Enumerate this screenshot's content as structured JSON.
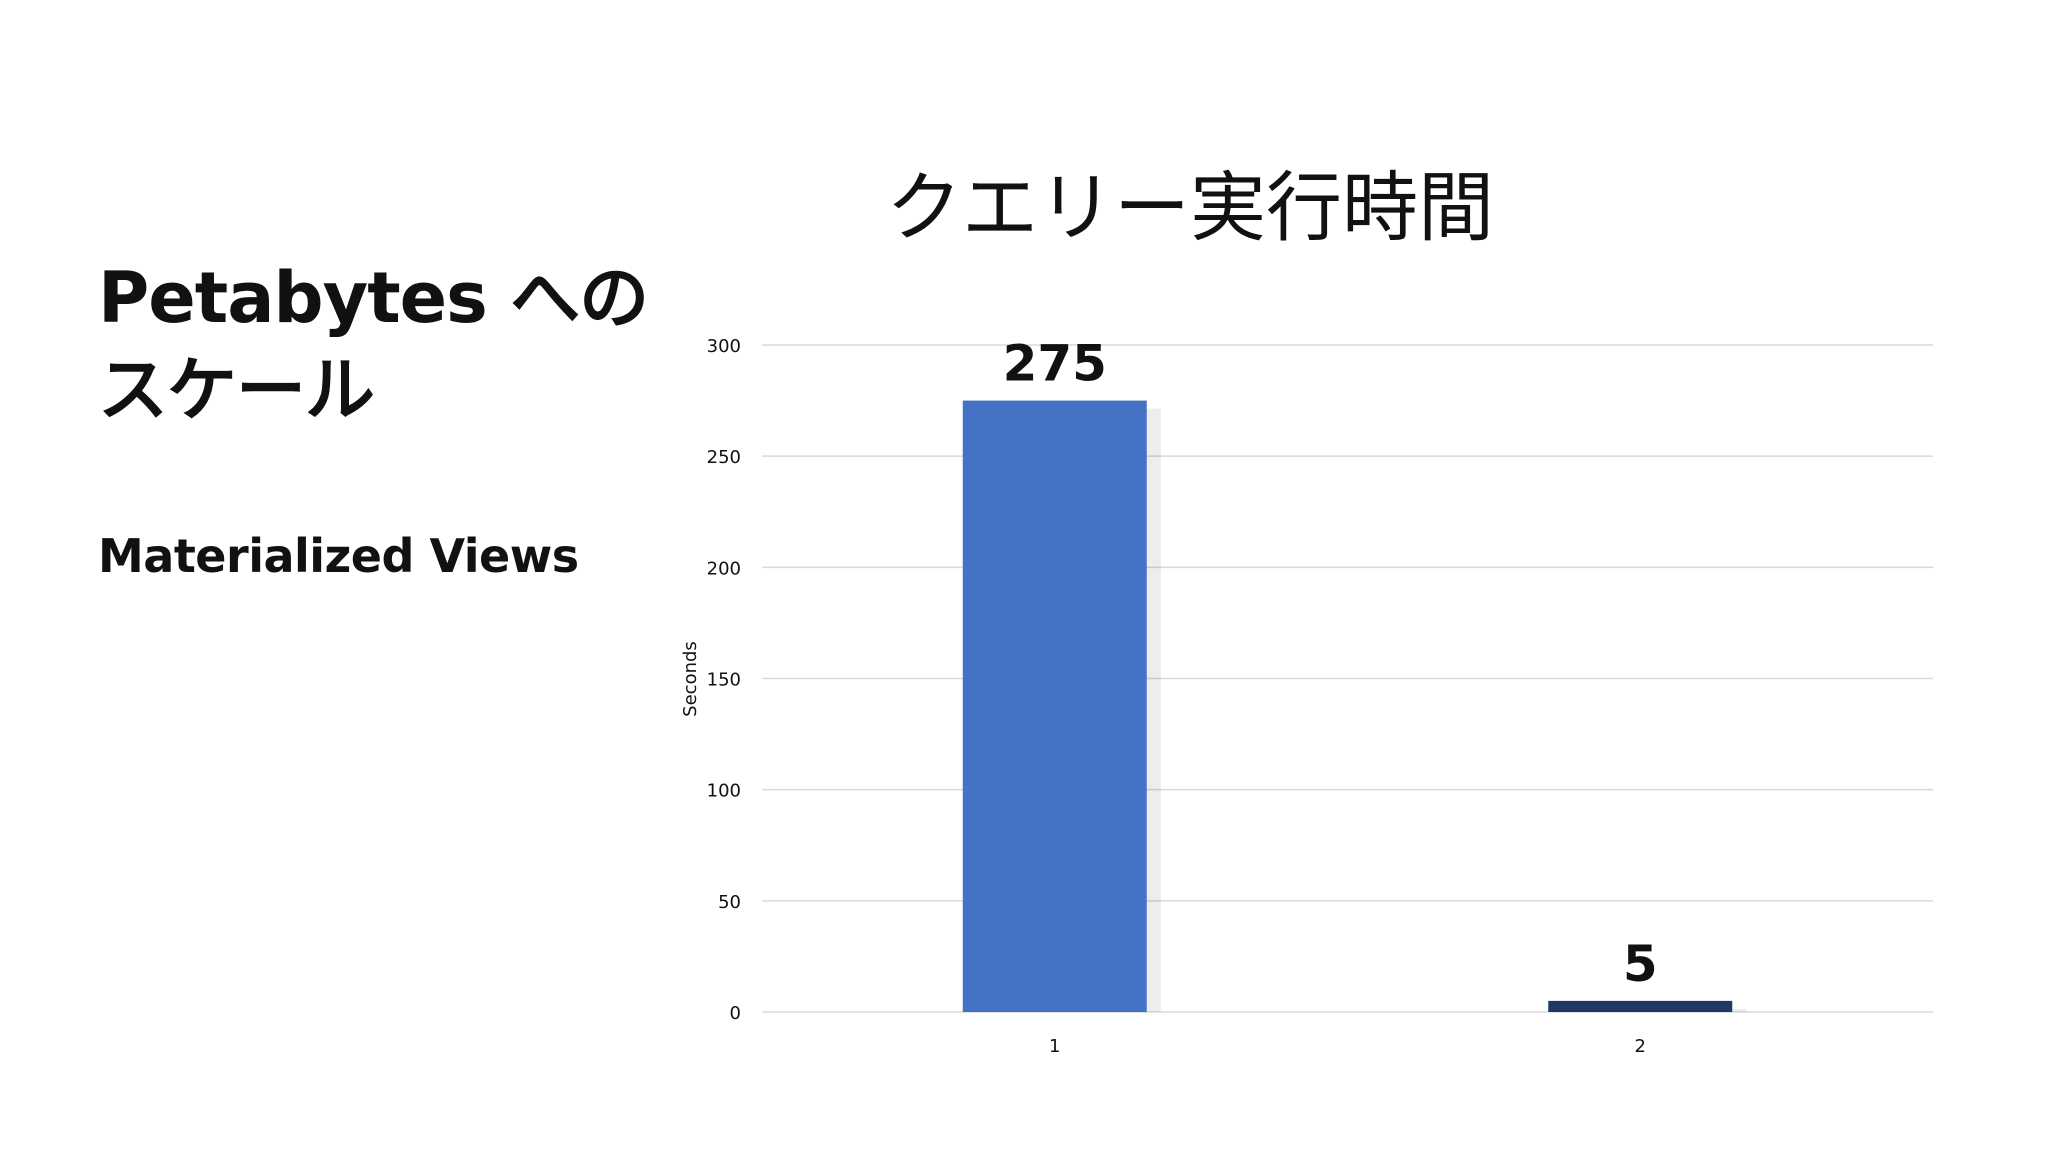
{
  "slide": {
    "title_line1": "Petabytes への",
    "title_line2": "スケール",
    "subtitle": "Materialized Views"
  },
  "colors": {
    "bar_1": "#4472c4",
    "bar_2": "#203864",
    "grid": "#d9d9d9",
    "text": "#111111"
  },
  "chart_data": {
    "type": "bar",
    "title": "クエリー実行時間",
    "xlabel": "",
    "ylabel": "Seconds",
    "categories": [
      "1",
      "2"
    ],
    "values": [
      275,
      5
    ],
    "data_labels": [
      "275",
      "5"
    ],
    "ylim": [
      0,
      300
    ],
    "yticks": [
      0,
      50,
      100,
      150,
      200,
      250,
      300
    ],
    "grid": true,
    "legend": "none"
  }
}
